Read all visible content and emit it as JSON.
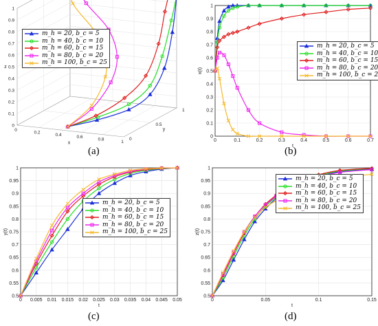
{
  "legend_entries": [
    {
      "label": "m_h = 20,  b_c = 5",
      "color": "#1b2fd9",
      "marker": "triangle"
    },
    {
      "label": "m_h = 40,  b_c = 10",
      "color": "#22dd22",
      "marker": "circle"
    },
    {
      "label": "m_h = 60,  b_c = 15",
      "color": "#e01b1b",
      "marker": "diamond"
    },
    {
      "label": "m_h = 80,  b_c = 20",
      "color": "#ee22ee",
      "marker": "square"
    },
    {
      "label": "m_h = 100,  b_c = 25",
      "color": "#f5b82a",
      "marker": "x"
    }
  ],
  "captions": {
    "a": "(a)",
    "b": "(b)",
    "c": "(c)",
    "d": "(d)"
  },
  "chart_data": [
    {
      "panel": "a",
      "type": "line",
      "projection": "3d",
      "xlabel": "x",
      "ylabel": "y",
      "zlabel": "z",
      "xticks": [
        "0",
        "0.2",
        "0.4",
        "0.6",
        "0.8",
        "1"
      ],
      "yticks": [
        "0",
        "0.5",
        "1"
      ],
      "zticks": [
        "0",
        "0.1",
        "0.2",
        "0.3",
        "0.4",
        "0.5",
        "0.6",
        "0.7",
        "0.8",
        "0.9",
        "1"
      ],
      "xlim": [
        0,
        1
      ],
      "ylim": [
        0,
        1
      ],
      "zlim": [
        0,
        1
      ],
      "grid": true,
      "legend": "left",
      "start": [
        0.45,
        0.05,
        0.02
      ],
      "series": [
        {
          "name": "m_h = 20,  b_c = 5",
          "points": [
            [
              0.45,
              0.05,
              0.02
            ],
            [
              0.6,
              0.3,
              0.03
            ],
            [
              0.75,
              0.6,
              0.06
            ],
            [
              0.85,
              0.8,
              0.15
            ],
            [
              0.92,
              0.93,
              0.35
            ],
            [
              0.97,
              0.98,
              0.65
            ],
            [
              1,
              1,
              0.95
            ]
          ]
        },
        {
          "name": "m_h = 40,  b_c = 10",
          "points": [
            [
              0.45,
              0.05,
              0.02
            ],
            [
              0.6,
              0.32,
              0.05
            ],
            [
              0.74,
              0.62,
              0.1
            ],
            [
              0.84,
              0.82,
              0.22
            ],
            [
              0.9,
              0.93,
              0.45
            ],
            [
              0.96,
              0.98,
              0.75
            ],
            [
              1,
              1,
              0.96
            ]
          ]
        },
        {
          "name": "m_h = 60,  b_c = 15",
          "points": [
            [
              0.45,
              0.05,
              0.02
            ],
            [
              0.58,
              0.32,
              0.06
            ],
            [
              0.7,
              0.62,
              0.15
            ],
            [
              0.8,
              0.82,
              0.3
            ],
            [
              0.86,
              0.94,
              0.55
            ],
            [
              0.9,
              0.98,
              0.82
            ],
            [
              0.93,
              1,
              0.97
            ]
          ]
        },
        {
          "name": "m_h = 80,  b_c = 20",
          "points": [
            [
              0.45,
              0.05,
              0.02
            ],
            [
              0.55,
              0.3,
              0.12
            ],
            [
              0.62,
              0.52,
              0.3
            ],
            [
              0.64,
              0.6,
              0.5
            ],
            [
              0.55,
              0.62,
              0.72
            ],
            [
              0.3,
              0.7,
              0.9
            ],
            [
              0.05,
              0.95,
              1
            ]
          ]
        },
        {
          "name": "m_h = 100,  b_c = 25",
          "points": [
            [
              0.45,
              0.05,
              0.02
            ],
            [
              0.55,
              0.3,
              0.15
            ],
            [
              0.58,
              0.5,
              0.35
            ],
            [
              0.55,
              0.55,
              0.55
            ],
            [
              0.45,
              0.55,
              0.72
            ],
            [
              0.2,
              0.65,
              0.9
            ],
            [
              0.02,
              0.95,
              0.99
            ]
          ]
        }
      ]
    },
    {
      "panel": "b",
      "type": "line",
      "xlabel": "t",
      "ylabel": "x(t)",
      "xlim": [
        0,
        0.7
      ],
      "ylim": [
        0,
        1
      ],
      "xticks": [
        "0",
        "0.1",
        "0.2",
        "0.3",
        "0.4",
        "0.5",
        "0.6",
        "0.7"
      ],
      "yticks": [
        "0",
        "0.1",
        "0.2",
        "0.3",
        "0.4",
        "0.5",
        "0.6",
        "0.7",
        "0.8",
        "0.9",
        "1"
      ],
      "grid": true,
      "legend": "bottom-right",
      "x": [
        0,
        0.01,
        0.02,
        0.04,
        0.06,
        0.08,
        0.1,
        0.15,
        0.2,
        0.3,
        0.4,
        0.5,
        0.6,
        0.7
      ],
      "series": [
        {
          "name": "m_h = 20,  b_c = 5",
          "values": [
            0.5,
            0.75,
            0.88,
            0.96,
            0.99,
            1.0,
            1.0,
            1.0,
            1.0,
            1.0,
            1.0,
            1.0,
            1.0,
            1.0
          ]
        },
        {
          "name": "m_h = 40,  b_c = 10",
          "values": [
            0.5,
            0.72,
            0.83,
            0.92,
            0.96,
            0.98,
            0.99,
            1.0,
            1.0,
            1.0,
            1.0,
            1.0,
            1.0,
            1.0
          ]
        },
        {
          "name": "m_h = 60,  b_c = 15",
          "values": [
            0.5,
            0.68,
            0.73,
            0.76,
            0.78,
            0.79,
            0.8,
            0.83,
            0.86,
            0.9,
            0.93,
            0.95,
            0.97,
            0.98
          ]
        },
        {
          "name": "m_h = 80,  b_c = 20",
          "values": [
            0.5,
            0.6,
            0.64,
            0.62,
            0.55,
            0.46,
            0.37,
            0.2,
            0.1,
            0.03,
            0.01,
            0.0,
            0.0,
            0.0
          ]
        },
        {
          "name": "m_h = 100,  b_c = 25",
          "values": [
            0.5,
            0.52,
            0.44,
            0.25,
            0.12,
            0.05,
            0.02,
            0.0,
            0.0,
            0.0,
            0.0,
            0.0,
            0.0,
            0.0
          ]
        }
      ]
    },
    {
      "panel": "c",
      "type": "line",
      "xlabel": "t",
      "ylabel": "y(t)",
      "xlim": [
        0,
        0.05
      ],
      "ylim": [
        0.5,
        1
      ],
      "xticks": [
        "0",
        "0.005",
        "0.01",
        "0.015",
        "0.02",
        "0.025",
        "0.03",
        "0.035",
        "0.04",
        "0.045",
        "0.05"
      ],
      "yticks": [
        "0.5",
        "0.55",
        "0.6",
        "0.65",
        "0.7",
        "0.75",
        "0.8",
        "0.85",
        "0.9",
        "0.95",
        "1"
      ],
      "grid": true,
      "legend": "right",
      "x": [
        0,
        0.005,
        0.01,
        0.015,
        0.02,
        0.025,
        0.03,
        0.035,
        0.04,
        0.045,
        0.05
      ],
      "series": [
        {
          "name": "m_h = 20,  b_c = 5",
          "values": [
            0.5,
            0.59,
            0.68,
            0.76,
            0.84,
            0.9,
            0.94,
            0.97,
            0.985,
            0.995,
            1.0
          ]
        },
        {
          "name": "m_h = 40,  b_c = 10",
          "values": [
            0.5,
            0.61,
            0.71,
            0.8,
            0.87,
            0.92,
            0.955,
            0.978,
            0.99,
            0.997,
            1.0
          ]
        },
        {
          "name": "m_h = 60,  b_c = 15",
          "values": [
            0.5,
            0.625,
            0.735,
            0.83,
            0.89,
            0.935,
            0.965,
            0.983,
            0.993,
            0.998,
            1.0
          ]
        },
        {
          "name": "m_h = 80,  b_c = 20",
          "values": [
            0.5,
            0.635,
            0.755,
            0.845,
            0.9,
            0.945,
            0.97,
            0.986,
            0.995,
            0.999,
            1.0
          ]
        },
        {
          "name": "m_h = 100,  b_c = 25",
          "values": [
            0.5,
            0.645,
            0.775,
            0.86,
            0.915,
            0.955,
            0.975,
            0.99,
            0.996,
            0.999,
            1.0
          ]
        }
      ]
    },
    {
      "panel": "d",
      "type": "line",
      "xlabel": "t",
      "ylabel": "z(t)",
      "xlim": [
        0,
        0.15
      ],
      "ylim": [
        0.5,
        1
      ],
      "xticks": [
        "0",
        "0.05",
        "0.1",
        "0.15"
      ],
      "yticks": [
        "0.5",
        "0.55",
        "0.6",
        "0.65",
        "0.7",
        "0.75",
        "0.8",
        "0.85",
        "0.9",
        "0.95",
        "1"
      ],
      "grid": true,
      "legend": "top-right",
      "x": [
        0,
        0.01,
        0.02,
        0.03,
        0.04,
        0.05,
        0.06,
        0.07,
        0.08,
        0.1,
        0.12,
        0.15
      ],
      "series": [
        {
          "name": "m_h = 20,  b_c = 5",
          "values": [
            0.5,
            0.56,
            0.64,
            0.72,
            0.79,
            0.84,
            0.88,
            0.91,
            0.935,
            0.965,
            0.985,
            0.995
          ]
        },
        {
          "name": "m_h = 40,  b_c = 10",
          "values": [
            0.5,
            0.57,
            0.655,
            0.735,
            0.8,
            0.85,
            0.885,
            0.915,
            0.94,
            0.97,
            0.987,
            0.997
          ]
        },
        {
          "name": "m_h = 60,  b_c = 15",
          "values": [
            0.5,
            0.58,
            0.665,
            0.745,
            0.81,
            0.858,
            0.893,
            0.922,
            0.945,
            0.973,
            0.99,
            0.998
          ]
        },
        {
          "name": "m_h = 80,  b_c = 20",
          "values": [
            0.5,
            0.585,
            0.67,
            0.75,
            0.81,
            0.855,
            0.888,
            0.915,
            0.937,
            0.965,
            0.982,
            0.993
          ]
        },
        {
          "name": "m_h = 100,  b_c = 25",
          "values": [
            0.5,
            0.59,
            0.675,
            0.75,
            0.805,
            0.845,
            0.872,
            0.895,
            0.912,
            0.94,
            0.96,
            0.975
          ]
        }
      ]
    }
  ]
}
